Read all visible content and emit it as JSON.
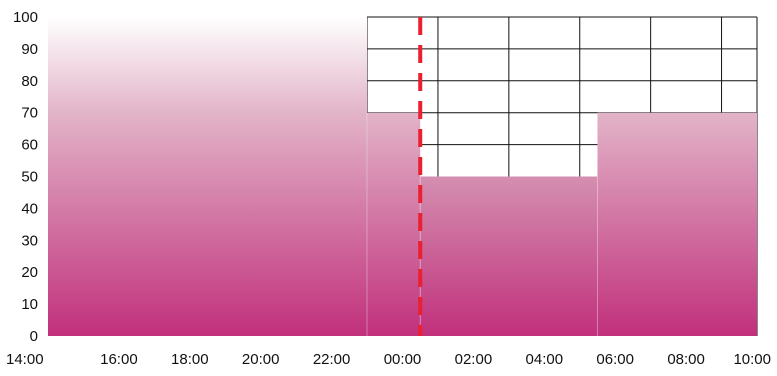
{
  "chart_data": {
    "type": "area",
    "title": "",
    "xlabel": "",
    "ylabel": "",
    "x_ticks": [
      "14:00",
      "16:00",
      "18:00",
      "20:00",
      "22:00",
      "00:00",
      "02:00",
      "04:00",
      "06:00",
      "08:00",
      "10:00"
    ],
    "y_ticks": [
      "0",
      "10",
      "20",
      "30",
      "40",
      "50",
      "60",
      "70",
      "80",
      "90",
      "100"
    ],
    "xlim": [
      "14:00",
      "10:00"
    ],
    "ylim": [
      0,
      100
    ],
    "series": [
      {
        "points": [
          {
            "x": "14:00",
            "y": 100
          },
          {
            "x": "23:00",
            "y": 100
          },
          {
            "x": "23:00",
            "y": 70
          },
          {
            "x": "00:30",
            "y": 70
          },
          {
            "x": "00:30",
            "y": 50
          },
          {
            "x": "05:30",
            "y": 50
          },
          {
            "x": "05:30",
            "y": 70
          },
          {
            "x": "10:00",
            "y": 70
          }
        ]
      }
    ],
    "current_time": "00:30",
    "grid": "visible only above the filled area, from 23:00 onward",
    "colors": {
      "fill_top_full": "#ffffff",
      "fill_top": "#e2b4c8",
      "fill_bottom": "#c1307c",
      "current_time_line": "#e8202f",
      "grid": "#111111"
    }
  }
}
